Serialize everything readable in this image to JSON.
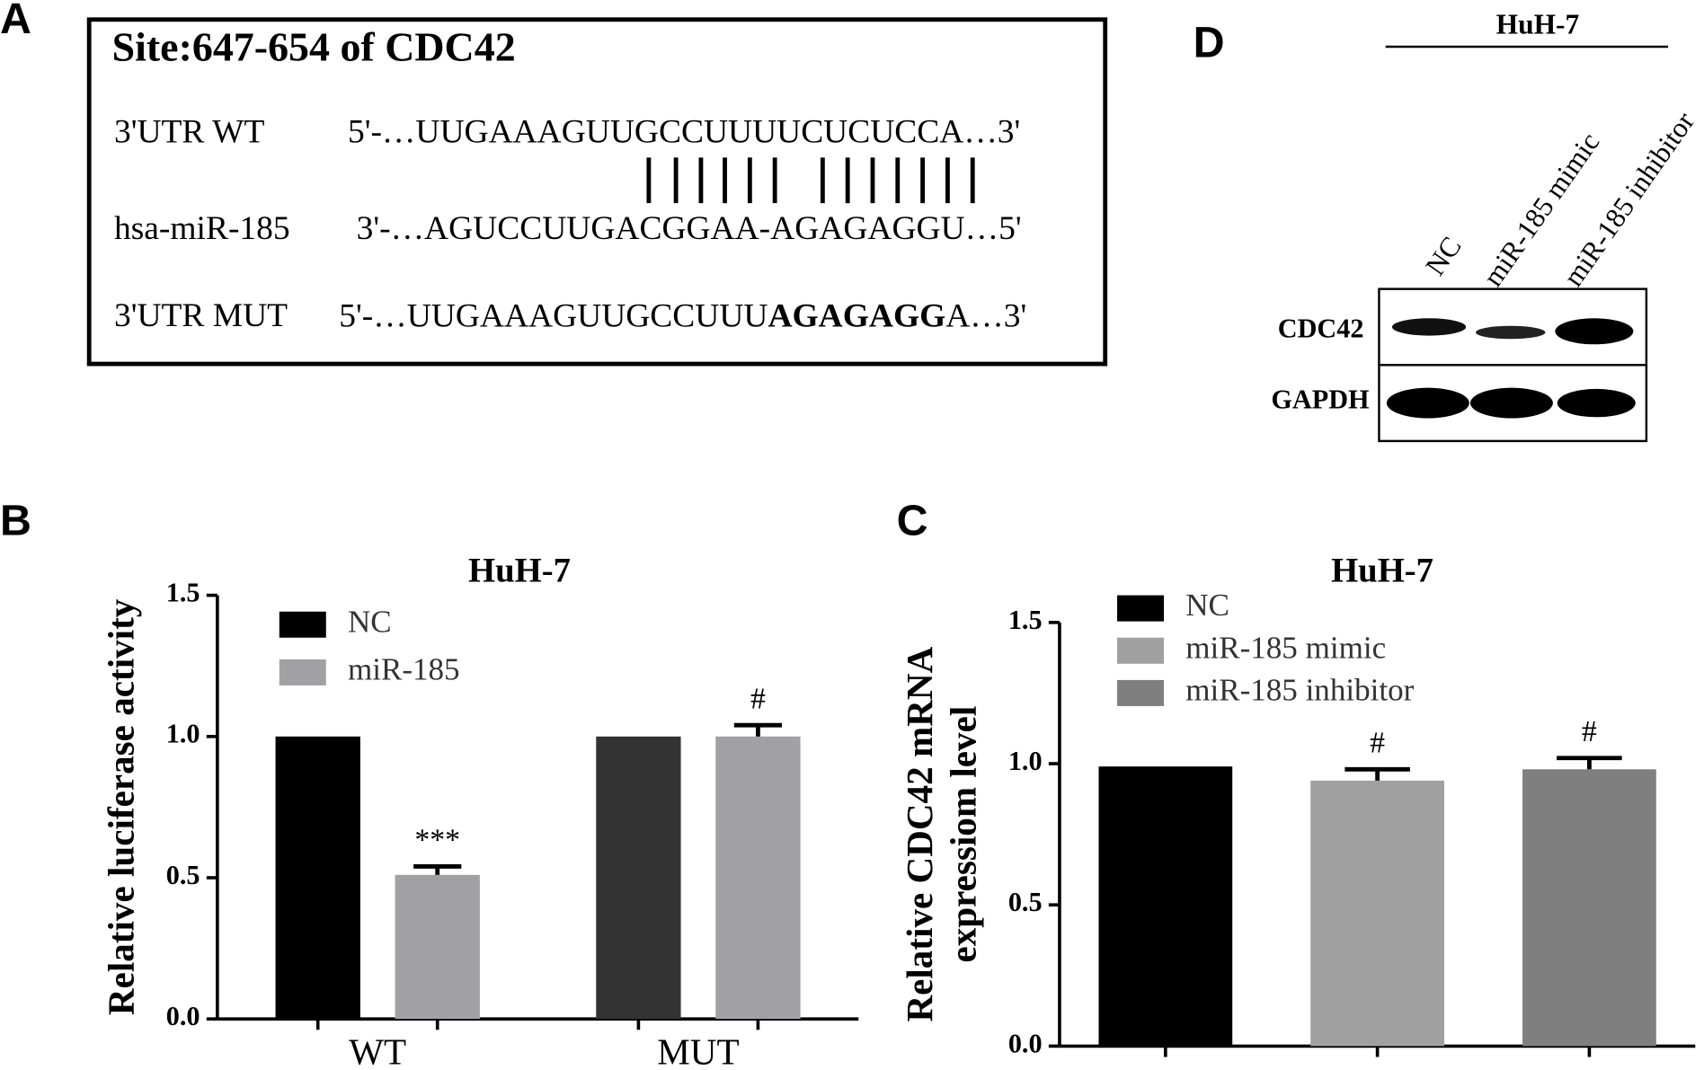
{
  "panel_labels": [
    "A",
    "B",
    "C",
    "D"
  ],
  "sequence": {
    "title": "Site:647-654 of CDC42",
    "wt": {
      "label": "3'UTR WT",
      "seq": "5'-…UUGAAAGUUGCCUUUUCUCUCCA…3'"
    },
    "mirna": {
      "label": "hsa-miR-185",
      "seq": "3'-…AGUCCUUGACGGAA-AGAGAGGU…5'"
    },
    "mut": {
      "label": "3'UTR MUT",
      "prefix": "5'-…UUGAAAGUUGCCUUU",
      "bold": "AGAGAGG",
      "suffix": "A…3'"
    }
  },
  "blot": {
    "title": "HuH-7",
    "lanes": [
      "NC",
      "miR-185 mimic",
      "miR-185 inhibitor"
    ],
    "proteins": [
      "CDC42",
      "GAPDH"
    ]
  },
  "chart_data": [
    {
      "type": "bar",
      "title": "HuH-7",
      "ylabel": "Relative luciferase activity",
      "categories": [
        "WT",
        "MUT"
      ],
      "series": [
        {
          "name": "NC",
          "color": "#000000",
          "point_colors": [
            "#000000",
            "#333333"
          ],
          "values": [
            1.0,
            1.0
          ]
        },
        {
          "name": "miR-185",
          "color": "#a1a1a5",
          "values": [
            0.51,
            1.0
          ],
          "errors": [
            0.03,
            0.04
          ],
          "annotations": [
            "***",
            "#"
          ]
        }
      ],
      "ylim": [
        0,
        1.5
      ],
      "yticks": [
        {
          "value": 0,
          "label": "0.0"
        },
        0.5,
        {
          "value": 1,
          "label": "1.0"
        },
        1.5
      ]
    },
    {
      "type": "bar",
      "title": "HuH-7",
      "ylabel": [
        "Relative CDC42 mRNA",
        "expressiom level"
      ],
      "categories": [
        null
      ],
      "series": [
        {
          "name": "NC",
          "color": "#000000",
          "values": [
            0.99
          ]
        },
        {
          "name": "miR-185 mimic",
          "color": "#a0a0a0",
          "values": [
            0.94
          ],
          "errors": [
            0.04
          ],
          "annotations": [
            "#"
          ]
        },
        {
          "name": "miR-185 inhibitor",
          "color": "#7f7f7f",
          "values": [
            0.98
          ],
          "errors": [
            0.04
          ],
          "annotations": [
            "#"
          ]
        }
      ],
      "ylim": [
        0,
        1.5
      ],
      "yticks": [
        {
          "value": 0,
          "label": "0.0"
        },
        0.5,
        {
          "value": 1,
          "label": "1.0"
        },
        1.5
      ]
    }
  ]
}
